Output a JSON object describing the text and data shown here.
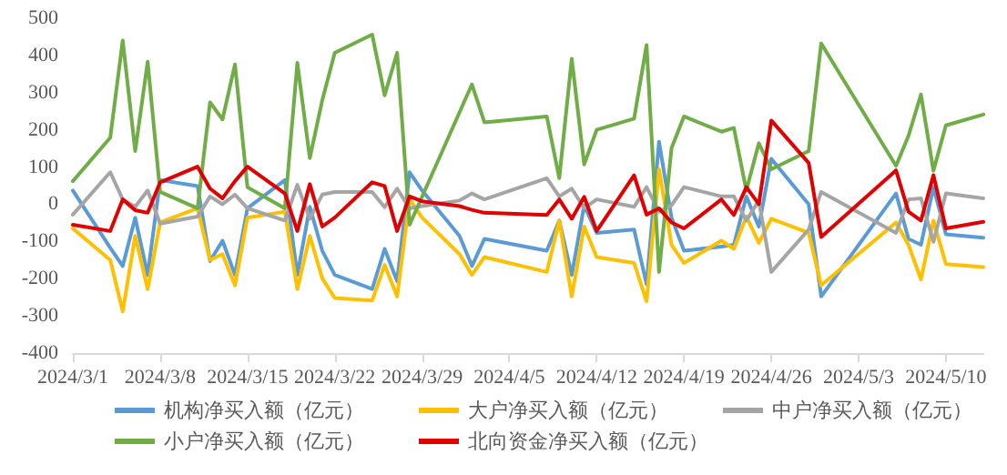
{
  "chart_data": {
    "type": "line",
    "x": [
      "2024-03-01",
      "2024-03-04",
      "2024-03-05",
      "2024-03-06",
      "2024-03-07",
      "2024-03-08",
      "2024-03-11",
      "2024-03-12",
      "2024-03-13",
      "2024-03-14",
      "2024-03-15",
      "2024-03-18",
      "2024-03-19",
      "2024-03-20",
      "2024-03-21",
      "2024-03-22",
      "2024-03-25",
      "2024-03-26",
      "2024-03-27",
      "2024-03-28",
      "2024-03-29",
      "2024-04-01",
      "2024-04-02",
      "2024-04-03",
      "2024-04-08",
      "2024-04-09",
      "2024-04-10",
      "2024-04-11",
      "2024-04-12",
      "2024-04-15",
      "2024-04-16",
      "2024-04-17",
      "2024-04-18",
      "2024-04-19",
      "2024-04-22",
      "2024-04-23",
      "2024-04-24",
      "2024-04-25",
      "2024-04-26",
      "2024-04-29",
      "2024-04-30",
      "2024-05-06",
      "2024-05-07",
      "2024-05-08",
      "2024-05-09",
      "2024-05-10",
      "2024-05-13"
    ],
    "series": [
      {
        "name": "机构净买入额（亿元）",
        "color": "#5b9bd5",
        "values": [
          37,
          -117,
          -166,
          -36,
          -190,
          65,
          49,
          -153,
          -98,
          -190,
          -11,
          65,
          -190,
          -7,
          -125,
          -190,
          -228,
          -120,
          -207,
          86,
          37,
          -85,
          -166,
          -93,
          -125,
          -44,
          -190,
          -3,
          -77,
          -68,
          -215,
          168,
          -36,
          -125,
          -114,
          -109,
          21,
          -60,
          122,
          0,
          -248,
          29,
          -93,
          -109,
          46,
          -81,
          -90
        ]
      },
      {
        "name": "大户净买入额（亿元）",
        "color": "#ffc000",
        "values": [
          -65,
          -150,
          -288,
          -85,
          -228,
          -49,
          -11,
          -150,
          -134,
          -218,
          -36,
          -20,
          -228,
          -85,
          -199,
          -252,
          -259,
          -163,
          -248,
          13,
          -36,
          -134,
          -190,
          -142,
          -182,
          -44,
          -248,
          -60,
          -142,
          -158,
          -261,
          94,
          -109,
          -158,
          -98,
          -120,
          -33,
          -104,
          -39,
          -77,
          -218,
          -49,
          -109,
          -202,
          -44,
          -161,
          -169
        ]
      },
      {
        "name": "中户净买入额（亿元）",
        "color": "#a5a5a5",
        "values": [
          -28,
          86,
          13,
          -7,
          37,
          -52,
          -33,
          21,
          0,
          26,
          -11,
          -44,
          52,
          -39,
          26,
          33,
          33,
          -8,
          42,
          -11,
          -5,
          10,
          29,
          13,
          70,
          21,
          42,
          -11,
          13,
          -7,
          46,
          -20,
          -3,
          46,
          21,
          21,
          -44,
          10,
          -182,
          -68,
          33,
          -77,
          13,
          16,
          -101,
          29,
          16
        ]
      },
      {
        "name": "小户净买入额（亿元）",
        "color": "#70ad47",
        "values": [
          62,
          179,
          440,
          143,
          383,
          33,
          -11,
          274,
          228,
          376,
          46,
          -11,
          380,
          124,
          280,
          407,
          456,
          293,
          407,
          -55,
          20,
          247,
          322,
          220,
          236,
          70,
          391,
          107,
          200,
          230,
          428,
          -182,
          151,
          236,
          195,
          205,
          37,
          164,
          94,
          143,
          432,
          103,
          184,
          295,
          90,
          212,
          241
        ]
      },
      {
        "name": "北向资金净买入额（亿元）",
        "color": "#e00000",
        "values": [
          -55,
          -72,
          13,
          -16,
          -23,
          59,
          101,
          42,
          16,
          62,
          101,
          29,
          -72,
          54,
          -60,
          -36,
          59,
          49,
          -72,
          21,
          8,
          -5,
          -15,
          -23,
          -29,
          13,
          -39,
          20,
          -72,
          78,
          -28,
          -11,
          -49,
          -65,
          13,
          -29,
          46,
          0,
          225,
          111,
          -88,
          91,
          -20,
          -44,
          78,
          -65,
          -47
        ]
      }
    ],
    "xlim": [
      "2024-03-01",
      "2024-05-13"
    ],
    "xticks": [
      {
        "value": "2024-03-01",
        "label": "2024/3/1"
      },
      {
        "value": "2024-03-08",
        "label": "2024/3/8"
      },
      {
        "value": "2024-03-15",
        "label": "2024/3/15"
      },
      {
        "value": "2024-03-22",
        "label": "2024/3/22"
      },
      {
        "value": "2024-03-29",
        "label": "2024/3/29"
      },
      {
        "value": "2024-04-05",
        "label": "2024/4/5"
      },
      {
        "value": "2024-04-12",
        "label": "2024/4/12"
      },
      {
        "value": "2024-04-19",
        "label": "2024/4/19"
      },
      {
        "value": "2024-04-26",
        "label": "2024/4/26"
      },
      {
        "value": "2024-05-03",
        "label": "2024/5/3"
      },
      {
        "value": "2024-05-10",
        "label": "2024/5/10"
      }
    ],
    "ylim": [
      -400,
      500
    ],
    "yticks": [
      -400,
      -300,
      -200,
      -100,
      0,
      100,
      200,
      300,
      400,
      500
    ],
    "grid": false,
    "legend": "bottom",
    "marker": "none",
    "line_style": "solid"
  }
}
